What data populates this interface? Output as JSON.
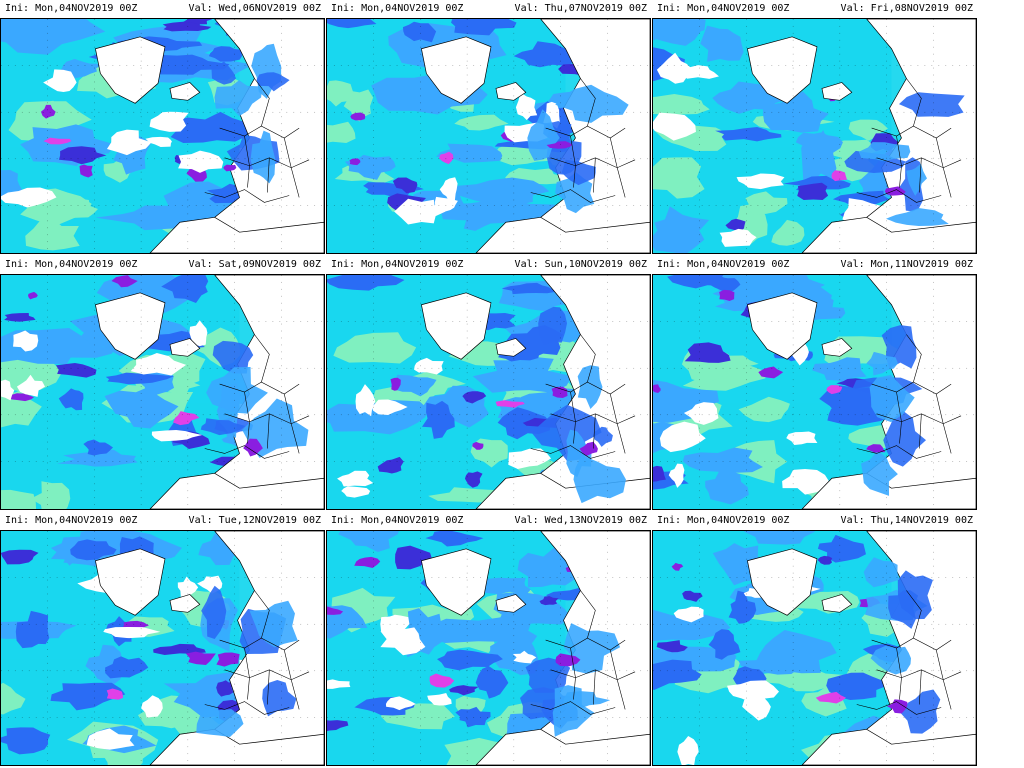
{
  "panels": [
    {
      "ini": "Ini: Mon,04NOV2019 00Z",
      "val": "Val: Wed,06NOV2019 00Z",
      "seed": 3
    },
    {
      "ini": "Ini: Mon,04NOV2019 00Z",
      "val": "Val: Thu,07NOV2019 00Z",
      "seed": 7
    },
    {
      "ini": "Ini: Mon,04NOV2019 00Z",
      "val": "Val: Fri,08NOV2019 00Z",
      "seed": 11
    },
    {
      "ini": "Ini: Mon,04NOV2019 00Z",
      "val": "Val: Sat,09NOV2019 00Z",
      "seed": 17
    },
    {
      "ini": "Ini: Mon,04NOV2019 00Z",
      "val": "Val: Sun,10NOV2019 00Z",
      "seed": 23
    },
    {
      "ini": "Ini: Mon,04NOV2019 00Z",
      "val": "Val: Mon,11NOV2019 00Z",
      "seed": 29
    },
    {
      "ini": "Ini: Mon,04NOV2019 00Z",
      "val": "Val: Tue,12NOV2019 00Z",
      "seed": 31
    },
    {
      "ini": "Ini: Mon,04NOV2019 00Z",
      "val": "Val: Wed,13NOV2019 00Z",
      "seed": 37
    },
    {
      "ini": "Ini: Mon,04NOV2019 00Z",
      "val": "Val: Thu,14NOV2019 00Z",
      "seed": 41
    }
  ],
  "colors": {
    "light_green": "#7ff0c0",
    "cyan": "#19d7ee",
    "light_blue": "#3aa8ff",
    "blue": "#2a6cf5",
    "indigo": "#3b2fd8",
    "purple": "#8a1ee0",
    "magenta": "#e040e8",
    "coast": "#000000",
    "background": "#ffffff"
  }
}
